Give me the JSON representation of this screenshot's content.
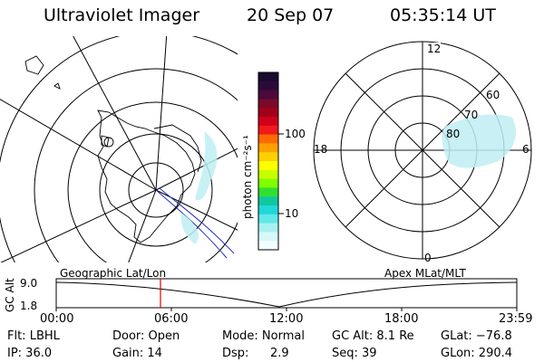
{
  "header": {
    "title": "Ultraviolet Imager",
    "date": "20 Sep 07",
    "time": "05:35:14 UT"
  },
  "colorbar": {
    "unit_label": "photon cm⁻²s⁻¹",
    "tick_labels": [
      "100",
      "10"
    ],
    "colors": [
      "#1a0a2e",
      "#2b0a3a",
      "#4a0a3a",
      "#7a0a2a",
      "#a0001a",
      "#d0001a",
      "#f01a1a",
      "#ff6a00",
      "#ffa000",
      "#ffd000",
      "#ffff00",
      "#c8ff00",
      "#80ff00",
      "#30e030",
      "#10c8a0",
      "#20d8d8",
      "#60e8e8",
      "#a8f0f0",
      "#d8f8f8",
      "#f0ffff"
    ]
  },
  "polar_plot": {
    "mlt_labels": {
      "top": "12",
      "left": "18",
      "right": "6",
      "bottom": "0"
    },
    "lat_labels": [
      "60",
      "70",
      "80"
    ]
  },
  "timeline": {
    "left_label": "Geographic Lat/Lon",
    "right_label": "Apex MLat/MLT",
    "axis_title": "GC Alt",
    "y_ticks": [
      "9.0",
      "1.8"
    ],
    "x_ticks": [
      "00:00",
      "06:00",
      "12:00",
      "18:00",
      "23:59"
    ],
    "current_marker_color": "#e00000"
  },
  "status": {
    "flt": "Flt: LBHL",
    "ip": "IP: 36.0",
    "door": "Door: Open",
    "gain": "Gain: 14",
    "mode": "Mode: Normal",
    "dsp_label": "Dsp:",
    "dsp_value": "2.9",
    "gc_alt": "GC Alt: 8.1 Re",
    "seq": "Seq: 39",
    "glat": "GLat: −76.8",
    "glon": "GLon: 290.4"
  }
}
